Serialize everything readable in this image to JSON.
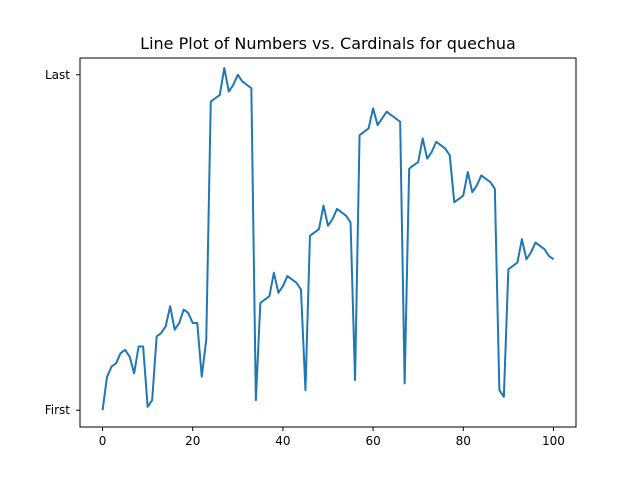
{
  "chart_data": {
    "type": "line",
    "title": "Line Plot of Numbers vs. Cardinals for quechua",
    "xlabel": "",
    "ylabel": "",
    "xlim": [
      -5,
      105
    ],
    "ylim": [
      -0.05,
      1.05
    ],
    "grid": false,
    "legend": "none",
    "x_ticks": [
      0,
      20,
      40,
      60,
      80,
      100
    ],
    "y_ticks": [
      {
        "value": 0,
        "label": "First"
      },
      {
        "value": 1,
        "label": "Last"
      }
    ],
    "line_color": "#1f77b4",
    "series": [
      {
        "x": [
          0,
          1,
          2,
          3,
          4,
          5,
          6,
          7,
          8,
          9,
          10,
          11,
          12,
          13,
          14,
          15,
          16,
          17,
          18,
          19,
          20,
          21,
          22,
          23,
          24,
          25,
          26,
          27,
          28,
          29,
          30,
          31,
          32,
          33,
          34,
          35,
          36,
          37,
          38,
          39,
          40,
          41,
          42,
          43,
          44,
          45,
          46,
          47,
          48,
          49,
          50,
          51,
          52,
          53,
          54,
          55,
          56,
          57,
          58,
          59,
          60,
          61,
          62,
          63,
          64,
          65,
          66,
          67,
          68,
          69,
          70,
          71,
          72,
          73,
          74,
          75,
          76,
          77,
          78,
          79,
          80,
          81,
          82,
          83,
          84,
          85,
          86,
          87,
          88,
          89,
          90,
          91,
          92,
          93,
          94,
          95,
          96,
          97,
          98,
          99,
          100
        ],
        "y": [
          0.0,
          0.1,
          0.13,
          0.14,
          0.17,
          0.18,
          0.16,
          0.11,
          0.19,
          0.19,
          0.01,
          0.03,
          0.22,
          0.23,
          0.25,
          0.31,
          0.24,
          0.26,
          0.3,
          0.29,
          0.26,
          0.26,
          0.1,
          0.21,
          0.92,
          0.93,
          0.94,
          1.02,
          0.95,
          0.97,
          1.0,
          0.98,
          0.97,
          0.96,
          0.03,
          0.32,
          0.33,
          0.34,
          0.41,
          0.35,
          0.37,
          0.4,
          0.39,
          0.38,
          0.36,
          0.06,
          0.52,
          0.53,
          0.54,
          0.61,
          0.55,
          0.57,
          0.6,
          0.59,
          0.58,
          0.56,
          0.09,
          0.82,
          0.83,
          0.84,
          0.9,
          0.85,
          0.87,
          0.89,
          0.88,
          0.87,
          0.86,
          0.08,
          0.72,
          0.73,
          0.74,
          0.81,
          0.75,
          0.77,
          0.8,
          0.79,
          0.78,
          0.76,
          0.62,
          0.63,
          0.64,
          0.71,
          0.65,
          0.67,
          0.7,
          0.69,
          0.68,
          0.66,
          0.06,
          0.04,
          0.42,
          0.43,
          0.44,
          0.51,
          0.45,
          0.47,
          0.5,
          0.49,
          0.48,
          0.46,
          0.45
        ]
      }
    ]
  }
}
